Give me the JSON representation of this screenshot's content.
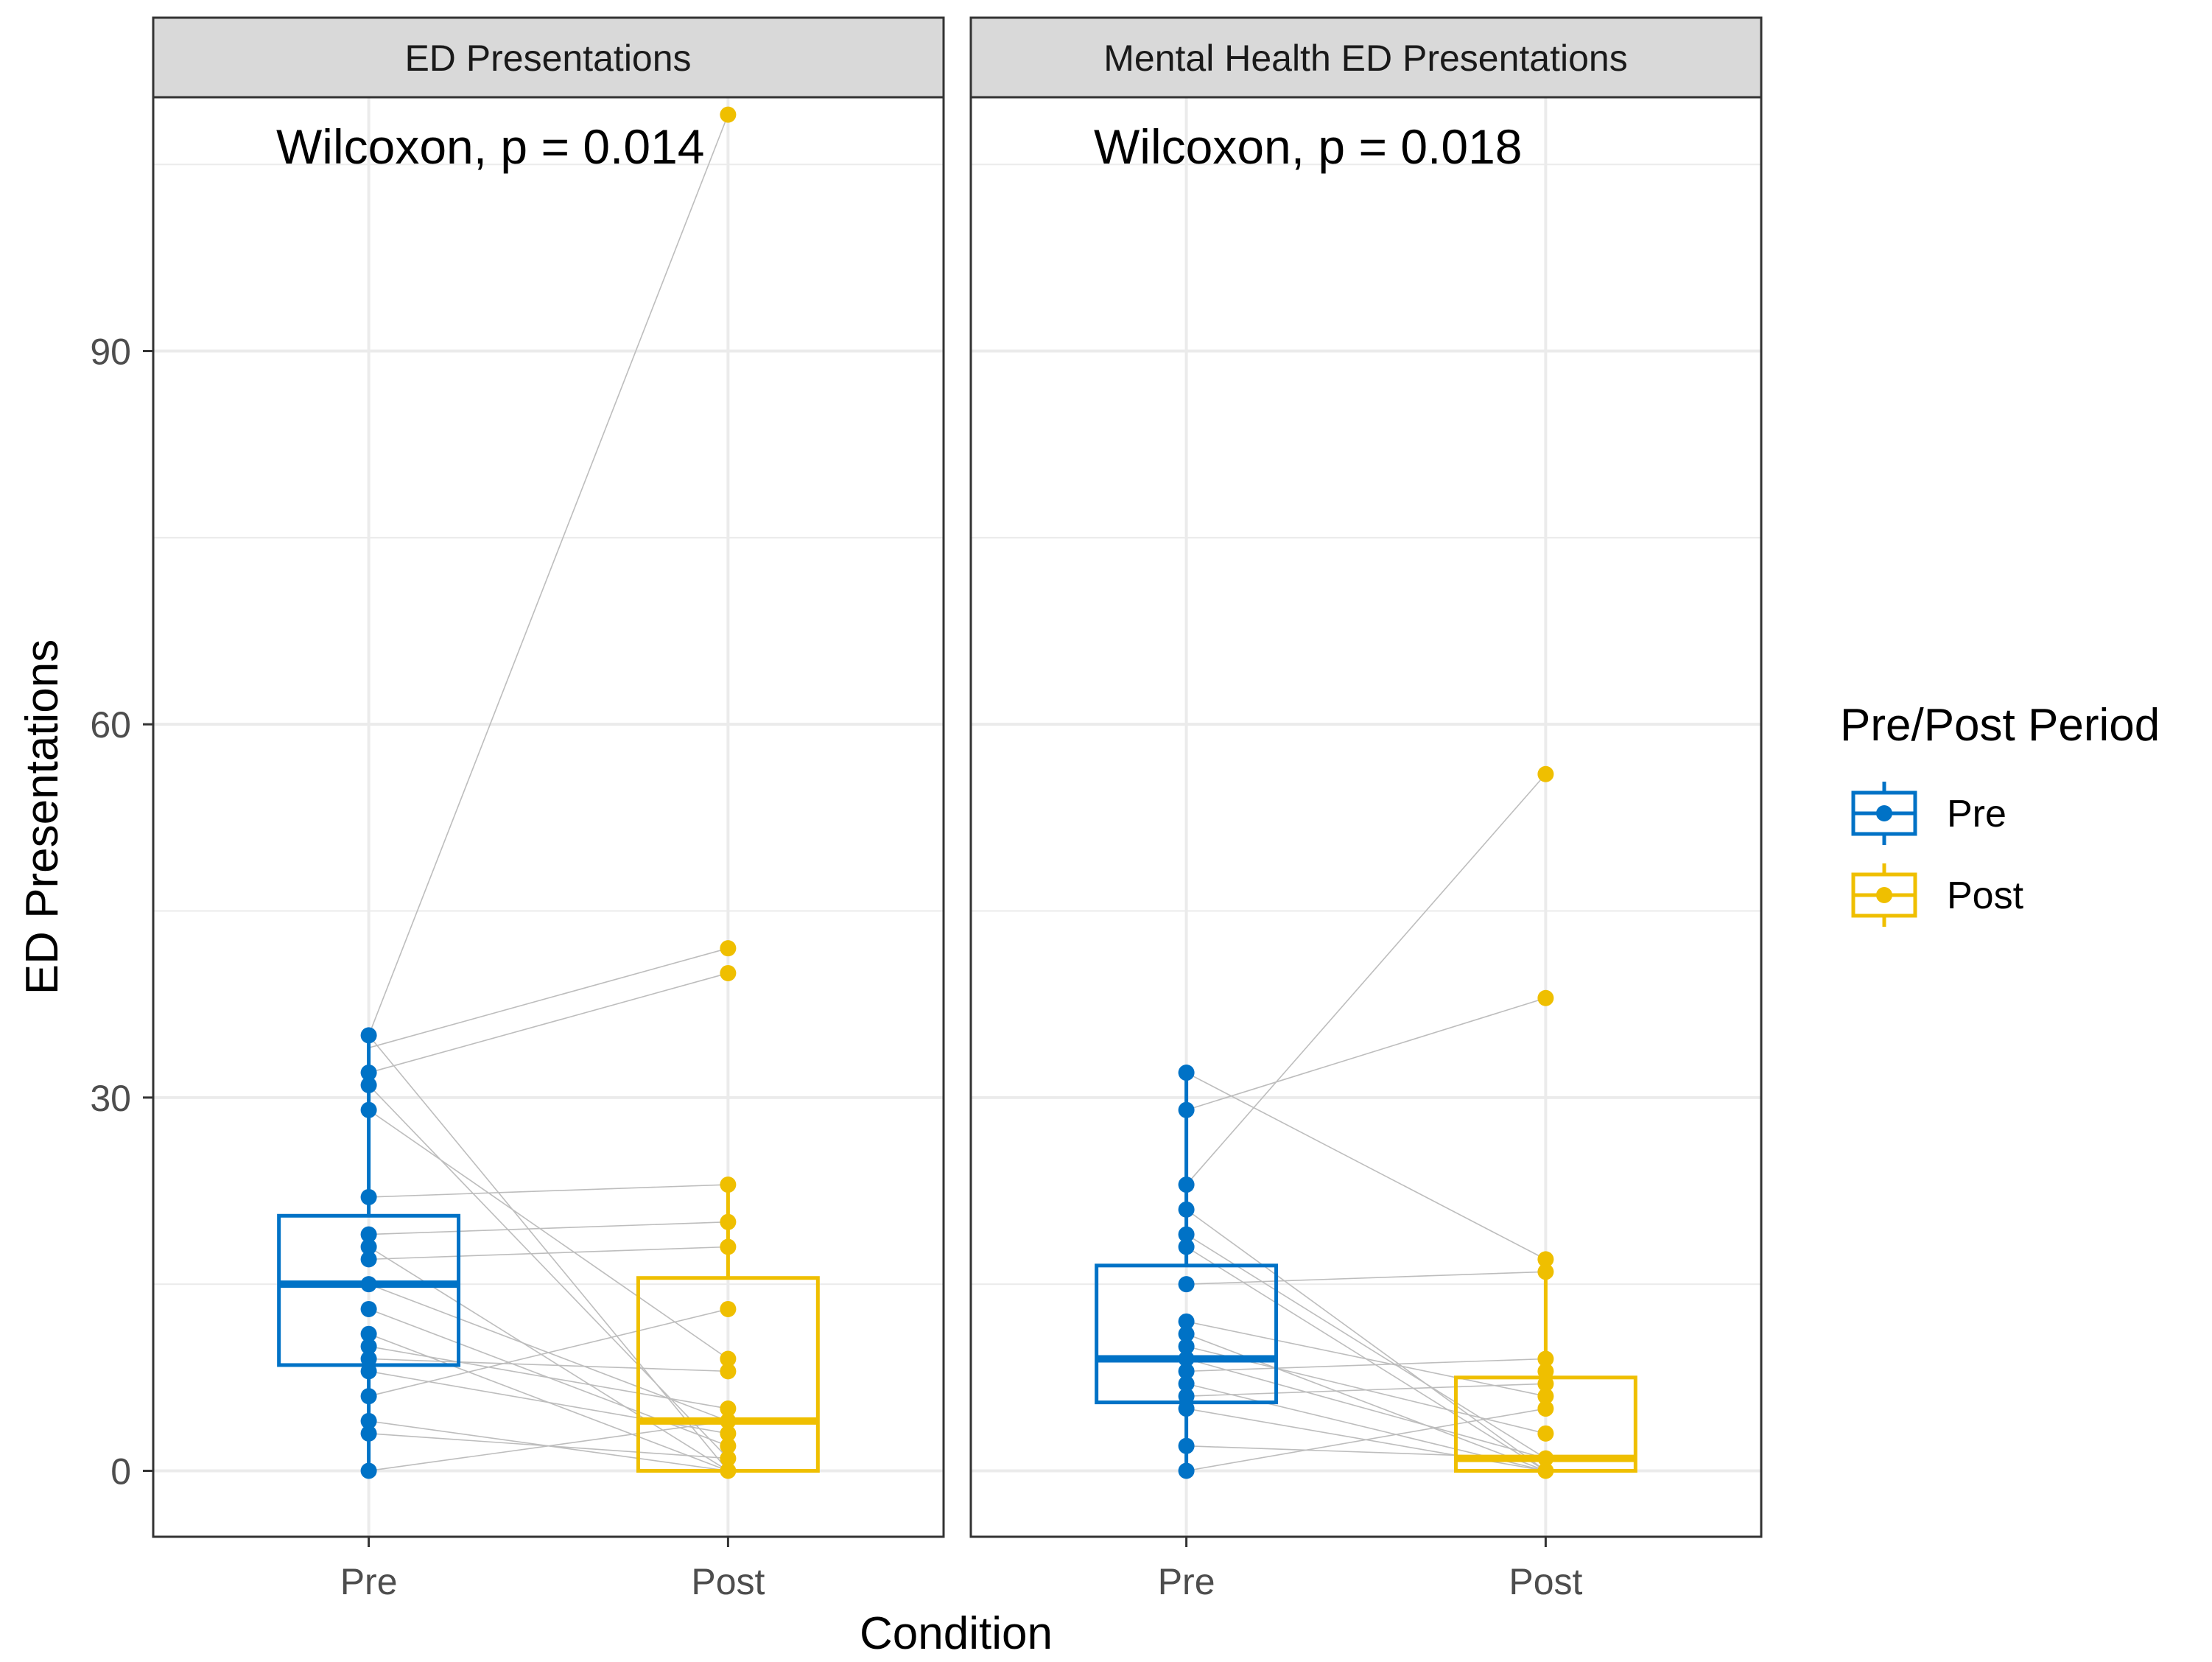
{
  "colors": {
    "pre": "#0072C6",
    "post": "#EFBF00",
    "pair_line": "#bdbdbd",
    "grid": "#ebebeb",
    "strip_bg": "#d9d9d9",
    "frame": "#333333"
  },
  "chart_data": {
    "type": "boxplot-paired",
    "xlabel": "Condition",
    "ylabel": "ED Presentations",
    "y_ticks": [
      0,
      30,
      60,
      90
    ],
    "ylim": [
      -5.3,
      110.4
    ],
    "categories": [
      "Pre",
      "Post"
    ],
    "legend": {
      "title": "Pre/Post Period",
      "position": "right",
      "entries": [
        "Pre",
        "Post"
      ]
    },
    "panels": [
      {
        "title": "ED Presentations",
        "annotation": "Wilcoxon, p = 0.014",
        "pre": [
          35,
          32,
          31,
          29,
          22,
          19,
          18,
          17,
          15,
          13,
          11,
          10,
          9,
          8,
          6,
          4,
          3,
          0
        ],
        "post": [
          109,
          42,
          40,
          23,
          20,
          18,
          13,
          9,
          8,
          5,
          4,
          3,
          2,
          1,
          0
        ],
        "pairs": [
          [
            35,
            109
          ],
          [
            35,
            0
          ],
          [
            34,
            42
          ],
          [
            32,
            40
          ],
          [
            31,
            1
          ],
          [
            29,
            9
          ],
          [
            22,
            23
          ],
          [
            19,
            20
          ],
          [
            18,
            0
          ],
          [
            17,
            18
          ],
          [
            15,
            4
          ],
          [
            13,
            2
          ],
          [
            11,
            0
          ],
          [
            10,
            5
          ],
          [
            9,
            8
          ],
          [
            8,
            3
          ],
          [
            6,
            13
          ],
          [
            4,
            0
          ],
          [
            3,
            1
          ],
          [
            0,
            4
          ]
        ],
        "box_pre": {
          "q1": 8.5,
          "median": 15,
          "q3": 20.5,
          "lower": 0,
          "upper": 35
        },
        "box_post": {
          "q1": 0,
          "median": 4,
          "q3": 15.5,
          "lower": 0,
          "upper": 23
        }
      },
      {
        "title": "Mental Health ED Presentations",
        "annotation": "Wilcoxon, p = 0.018",
        "pre": [
          32,
          29,
          23,
          21,
          19,
          18,
          15,
          12,
          11,
          10,
          9,
          8,
          7,
          6,
          5,
          2,
          0
        ],
        "post": [
          56,
          38,
          17,
          16,
          9,
          8,
          7,
          6,
          5,
          3,
          1,
          0
        ],
        "pairs": [
          [
            32,
            17
          ],
          [
            29,
            38
          ],
          [
            23,
            56
          ],
          [
            21,
            0
          ],
          [
            19,
            1
          ],
          [
            18,
            0
          ],
          [
            15,
            16
          ],
          [
            12,
            6
          ],
          [
            11,
            0
          ],
          [
            10,
            3
          ],
          [
            9,
            1
          ],
          [
            8,
            9
          ],
          [
            7,
            0
          ],
          [
            6,
            7
          ],
          [
            5,
            0
          ],
          [
            2,
            1
          ],
          [
            0,
            5
          ]
        ],
        "box_pre": {
          "q1": 5.5,
          "median": 9,
          "q3": 16.5,
          "lower": 0,
          "upper": 32
        },
        "box_post": {
          "q1": 0,
          "median": 1,
          "q3": 7.5,
          "lower": 0,
          "upper": 17
        }
      }
    ]
  }
}
